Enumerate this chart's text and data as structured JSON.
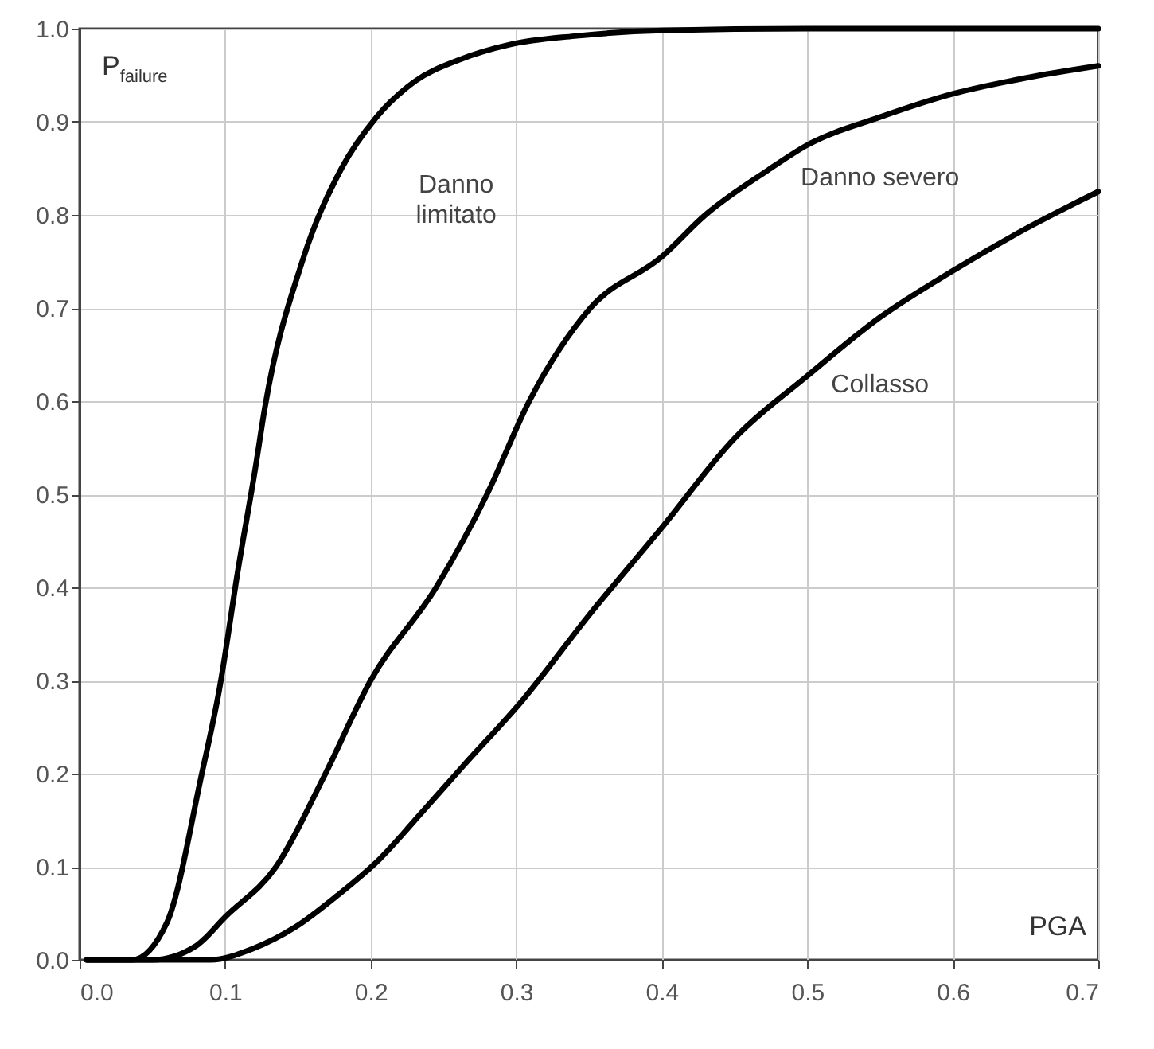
{
  "chart_data": {
    "type": "line",
    "xlabel": "PGA",
    "ylabel": "P$_{failure}$",
    "series": [
      {
        "name": "Danno limitato",
        "color": "#000000",
        "x": [
          0.005,
          0.036,
          0.06,
          0.084,
          0.096,
          0.109,
          0.121,
          0.127,
          0.153,
          0.18,
          0.204,
          0.231,
          0.26,
          0.296,
          0.34,
          0.4,
          0.5,
          0.6,
          0.7
        ],
        "values": [
          0,
          0,
          0.04,
          0.2,
          0.29,
          0.42,
          0.53,
          0.59,
          0.75,
          0.85,
          0.905,
          0.944,
          0.966,
          0.983,
          0.992,
          0.998,
          1,
          1,
          1
        ]
      },
      {
        "name": "Danno severo",
        "color": "#000000",
        "x": [
          0.005,
          0.05,
          0.08,
          0.1,
          0.135,
          0.168,
          0.2,
          0.245,
          0.28,
          0.309,
          0.351,
          0.4,
          0.43,
          0.473,
          0.5,
          0.55,
          0.6,
          0.65,
          0.7
        ],
        "values": [
          0,
          0,
          0.015,
          0.046,
          0.1,
          0.197,
          0.3,
          0.4,
          0.5,
          0.6,
          0.7,
          0.755,
          0.8,
          0.848,
          0.875,
          0.905,
          0.93,
          0.947,
          0.96
        ]
      },
      {
        "name": "Collasso",
        "color": "#000000",
        "x": [
          0.005,
          0.09,
          0.119,
          0.148,
          0.177,
          0.206,
          0.235,
          0.264,
          0.305,
          0.35,
          0.4,
          0.45,
          0.5,
          0.55,
          0.6,
          0.65,
          0.7
        ],
        "values": [
          0,
          0,
          0.012,
          0.035,
          0.069,
          0.108,
          0.158,
          0.209,
          0.28,
          0.37,
          0.464,
          0.56,
          0.627,
          0.69,
          0.74,
          0.785,
          0.825
        ]
      }
    ],
    "xlim": [
      0,
      0.7
    ],
    "ylim": [
      0,
      1
    ],
    "xticks": [
      {
        "value": 0,
        "label": "0.0"
      },
      0.1,
      0.2,
      0.3,
      0.4,
      0.5,
      0.6,
      0.7
    ],
    "yticks": [
      {
        "value": 0,
        "label": "0.0"
      },
      0.1,
      0.2,
      0.3,
      0.4,
      0.5,
      0.6,
      0.7,
      0.8,
      0.9,
      {
        "value": 1,
        "label": "1.0"
      }
    ],
    "grid": true,
    "line_style": "solid",
    "marker": "none"
  }
}
